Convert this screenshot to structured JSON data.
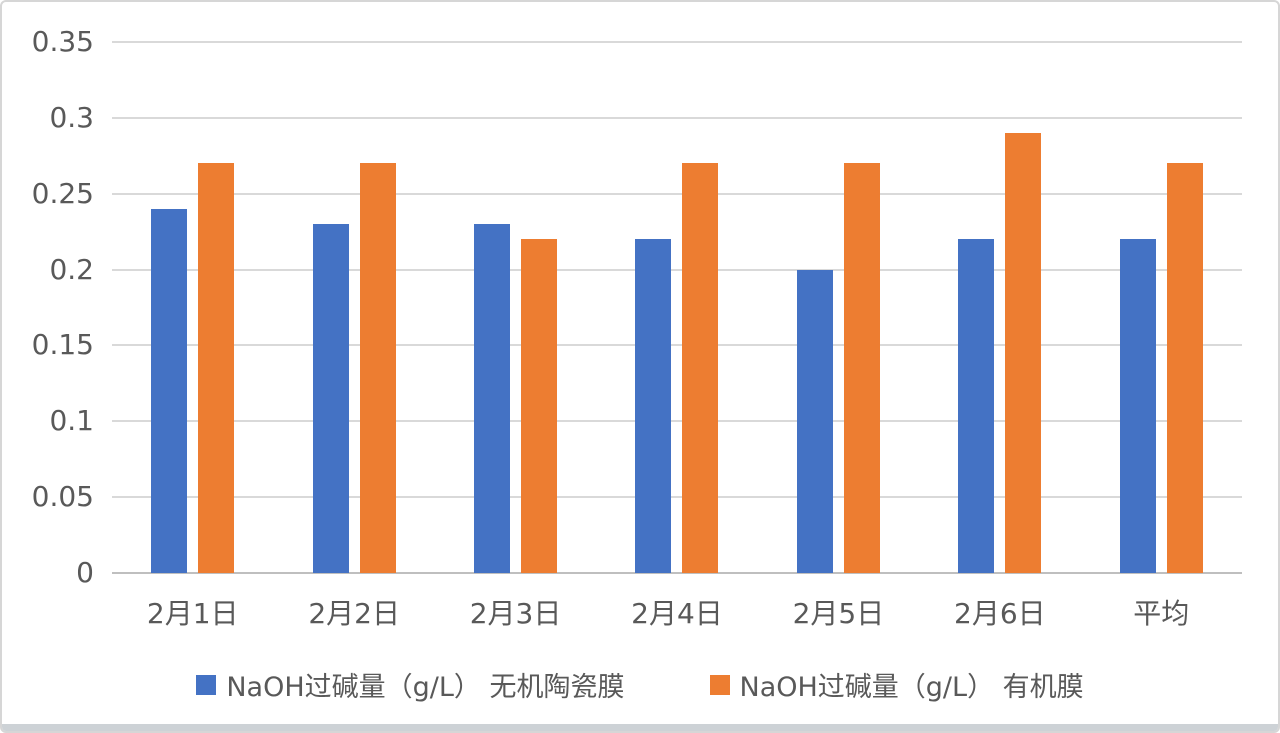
{
  "chart_data": {
    "type": "bar",
    "title": "",
    "xlabel": "",
    "ylabel": "",
    "categories": [
      "2月1日",
      "2月2日",
      "2月3日",
      "2月4日",
      "2月5日",
      "2月6日",
      "平均"
    ],
    "series": [
      {
        "name": "NaOH过碱量（g/L） 无机陶瓷膜",
        "color": "#4472C4",
        "values": [
          0.24,
          0.23,
          0.23,
          0.22,
          0.2,
          0.22,
          0.22
        ]
      },
      {
        "name": "NaOH过碱量（g/L） 有机膜",
        "color": "#ED7D31",
        "values": [
          0.27,
          0.27,
          0.22,
          0.27,
          0.27,
          0.29,
          0.27
        ]
      }
    ],
    "ylim": [
      0,
      0.35
    ],
    "ytick_step": 0.05,
    "ytick_labels": [
      "0",
      "0.05",
      "0.1",
      "0.15",
      "0.2",
      "0.25",
      "0.3",
      "0.35"
    ],
    "grid": true,
    "legend_position": "bottom",
    "colors": {
      "text": "#595959",
      "gridline": "#D9D9D9",
      "axis_line": "#BFBFBF"
    }
  }
}
